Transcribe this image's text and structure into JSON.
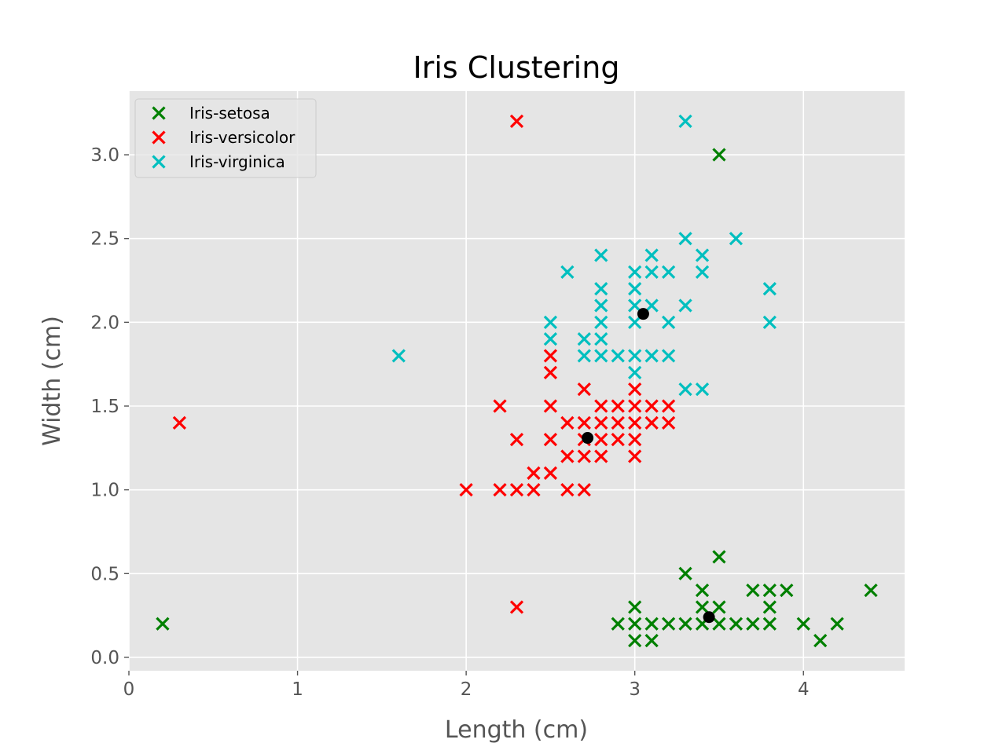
{
  "chart_data": {
    "type": "scatter",
    "title": "Iris Clustering",
    "xlabel": "Length (cm)",
    "ylabel": "Width (cm)",
    "xlim": [
      0,
      4.6
    ],
    "ylim": [
      -0.08,
      3.38
    ],
    "xticks": [
      0,
      1,
      2,
      3,
      4
    ],
    "yticks": [
      0.0,
      0.5,
      1.0,
      1.5,
      2.0,
      2.5,
      3.0
    ],
    "xtick_labels": [
      "0",
      "1",
      "2",
      "3",
      "4"
    ],
    "ytick_labels": [
      "0.0",
      "0.5",
      "1.0",
      "1.5",
      "2.0",
      "2.5",
      "3.0"
    ],
    "grid": true,
    "legend_position": "top-left",
    "marker": "x",
    "series": [
      {
        "name": "Iris-setosa",
        "color": "#008000",
        "points": [
          [
            0.2,
            0.2
          ],
          [
            3.5,
            3.0
          ],
          [
            3.5,
            0.6
          ],
          [
            3.3,
            0.5
          ],
          [
            3.4,
            0.4
          ],
          [
            3.7,
            0.4
          ],
          [
            3.8,
            0.4
          ],
          [
            3.9,
            0.4
          ],
          [
            4.4,
            0.4
          ],
          [
            3.0,
            0.3
          ],
          [
            3.4,
            0.3
          ],
          [
            3.5,
            0.3
          ],
          [
            3.8,
            0.3
          ],
          [
            2.9,
            0.2
          ],
          [
            3.0,
            0.2
          ],
          [
            3.1,
            0.2
          ],
          [
            3.2,
            0.2
          ],
          [
            3.3,
            0.2
          ],
          [
            3.4,
            0.2
          ],
          [
            3.5,
            0.2
          ],
          [
            3.6,
            0.2
          ],
          [
            3.7,
            0.2
          ],
          [
            3.8,
            0.2
          ],
          [
            4.0,
            0.2
          ],
          [
            4.2,
            0.2
          ],
          [
            3.0,
            0.1
          ],
          [
            3.1,
            0.1
          ],
          [
            4.1,
            0.1
          ]
        ]
      },
      {
        "name": "Iris-versicolor",
        "color": "#ff0000",
        "points": [
          [
            2.3,
            3.2
          ],
          [
            0.3,
            1.4
          ],
          [
            2.3,
            0.3
          ],
          [
            2.5,
            1.8
          ],
          [
            2.5,
            1.7
          ],
          [
            2.7,
            1.6
          ],
          [
            3.0,
            1.6
          ],
          [
            2.2,
            1.5
          ],
          [
            2.5,
            1.5
          ],
          [
            2.8,
            1.5
          ],
          [
            2.9,
            1.5
          ],
          [
            3.0,
            1.5
          ],
          [
            3.1,
            1.5
          ],
          [
            3.2,
            1.5
          ],
          [
            2.7,
            1.4
          ],
          [
            2.6,
            1.4
          ],
          [
            2.8,
            1.4
          ],
          [
            2.9,
            1.4
          ],
          [
            3.0,
            1.4
          ],
          [
            3.1,
            1.4
          ],
          [
            3.2,
            1.4
          ],
          [
            2.3,
            1.3
          ],
          [
            2.5,
            1.3
          ],
          [
            2.7,
            1.3
          ],
          [
            2.8,
            1.3
          ],
          [
            2.9,
            1.3
          ],
          [
            3.0,
            1.3
          ],
          [
            2.6,
            1.2
          ],
          [
            2.7,
            1.2
          ],
          [
            2.8,
            1.2
          ],
          [
            3.0,
            1.2
          ],
          [
            2.4,
            1.1
          ],
          [
            2.5,
            1.1
          ],
          [
            2.0,
            1.0
          ],
          [
            2.2,
            1.0
          ],
          [
            2.3,
            1.0
          ],
          [
            2.4,
            1.0
          ],
          [
            2.6,
            1.0
          ],
          [
            2.7,
            1.0
          ]
        ]
      },
      {
        "name": "Iris-virginica",
        "color": "#00bfbf",
        "points": [
          [
            3.3,
            3.2
          ],
          [
            3.3,
            2.5
          ],
          [
            3.6,
            2.5
          ],
          [
            2.8,
            2.4
          ],
          [
            3.1,
            2.4
          ],
          [
            3.4,
            2.4
          ],
          [
            2.6,
            2.3
          ],
          [
            3.0,
            2.3
          ],
          [
            3.1,
            2.3
          ],
          [
            3.2,
            2.3
          ],
          [
            3.4,
            2.3
          ],
          [
            2.8,
            2.2
          ],
          [
            3.0,
            2.2
          ],
          [
            3.8,
            2.2
          ],
          [
            2.8,
            2.1
          ],
          [
            3.0,
            2.1
          ],
          [
            3.1,
            2.1
          ],
          [
            3.3,
            2.1
          ],
          [
            2.5,
            2.0
          ],
          [
            2.8,
            2.0
          ],
          [
            3.0,
            2.0
          ],
          [
            3.2,
            2.0
          ],
          [
            3.8,
            2.0
          ],
          [
            2.5,
            1.9
          ],
          [
            2.7,
            1.9
          ],
          [
            2.8,
            1.9
          ],
          [
            1.6,
            1.8
          ],
          [
            2.7,
            1.8
          ],
          [
            2.8,
            1.8
          ],
          [
            2.9,
            1.8
          ],
          [
            3.0,
            1.8
          ],
          [
            3.1,
            1.8
          ],
          [
            3.2,
            1.8
          ],
          [
            3.0,
            1.7
          ],
          [
            3.3,
            1.6
          ],
          [
            3.4,
            1.6
          ]
        ]
      }
    ],
    "centroids": {
      "color": "#000000",
      "points": [
        [
          3.44,
          0.24
        ],
        [
          2.72,
          1.31
        ],
        [
          3.05,
          2.05
        ]
      ]
    }
  }
}
